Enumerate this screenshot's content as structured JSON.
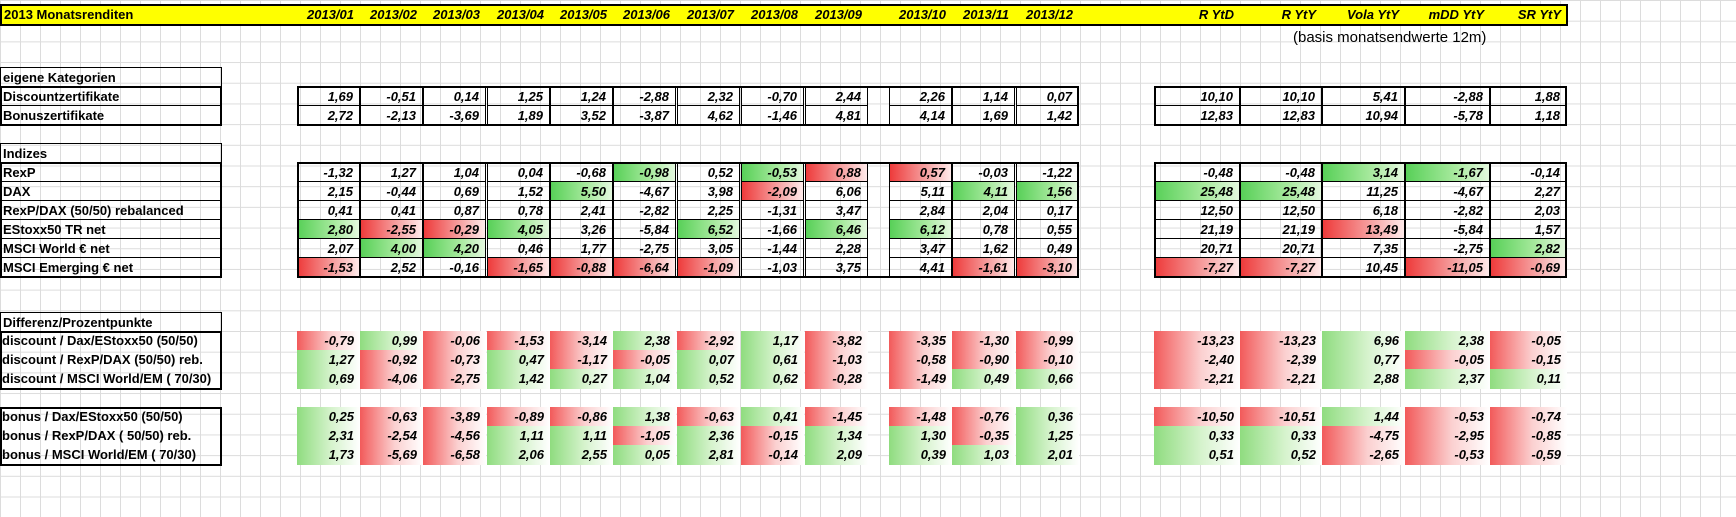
{
  "header": {
    "title": "2013 Monatsrenditen",
    "months": [
      "2013/01",
      "2013/02",
      "2013/03",
      "2013/04",
      "2013/05",
      "2013/06",
      "2013/07",
      "2013/08",
      "2013/09",
      "2013/10",
      "2013/11",
      "2013/12"
    ],
    "stats": [
      "R YtD",
      "R YtY",
      "Vola YtY",
      "mDD YtY",
      "SR YtY"
    ],
    "note": "(basis monatsendwerte 12m)"
  },
  "sections": [
    {
      "title": "eigene Kategorien",
      "rows": [
        {
          "label": "Discountzertifikate",
          "values": [
            "1,69",
            "-0,51",
            "0,14",
            "1,25",
            "1,24",
            "-2,88",
            "2,32",
            "-0,70",
            "2,44",
            "2,26",
            "1,14",
            "0,07"
          ],
          "stats": [
            "10,10",
            "10,10",
            "5,41",
            "-2,88",
            "1,88"
          ],
          "fill": [
            "",
            "",
            "",
            "",
            "",
            "",
            "",
            "",
            "",
            "",
            "",
            ""
          ],
          "sfill": [
            "",
            "",
            "",
            "",
            ""
          ]
        },
        {
          "label": "Bonuszertifikate",
          "values": [
            "2,72",
            "-2,13",
            "-3,69",
            "1,89",
            "3,52",
            "-3,87",
            "4,62",
            "-1,46",
            "4,81",
            "4,14",
            "1,69",
            "1,42"
          ],
          "stats": [
            "12,83",
            "12,83",
            "10,94",
            "-5,78",
            "1,18"
          ],
          "fill": [
            "",
            "",
            "",
            "",
            "",
            "",
            "",
            "",
            "",
            "",
            "",
            ""
          ],
          "sfill": [
            "",
            "",
            "",
            "",
            ""
          ]
        }
      ]
    },
    {
      "title": "Indizes",
      "rows": [
        {
          "label": "RexP",
          "values": [
            "-1,32",
            "1,27",
            "1,04",
            "0,04",
            "-0,68",
            "-0,98",
            "0,52",
            "-0,53",
            "0,88",
            "0,57",
            "-0,03",
            "-1,22"
          ],
          "stats": [
            "-0,48",
            "-0,48",
            "3,14",
            "-1,67",
            "-0,14"
          ],
          "fill": [
            "",
            "",
            "",
            "",
            "",
            "grn",
            "",
            "grn",
            "red",
            "red",
            "",
            ""
          ],
          "sfill": [
            "",
            "",
            "grn",
            "grn",
            ""
          ]
        },
        {
          "label": "DAX",
          "values": [
            "2,15",
            "-0,44",
            "0,69",
            "1,52",
            "5,50",
            "-4,67",
            "3,98",
            "-2,09",
            "6,06",
            "5,11",
            "4,11",
            "1,56"
          ],
          "stats": [
            "25,48",
            "25,48",
            "11,25",
            "-4,67",
            "2,27"
          ],
          "fill": [
            "",
            "",
            "",
            "",
            "grn",
            "",
            "",
            "red",
            "",
            "",
            "grn",
            "grn"
          ],
          "sfill": [
            "grn",
            "grn",
            "",
            "",
            ""
          ]
        },
        {
          "label": "RexP/DAX (50/50) rebalanced",
          "values": [
            "0,41",
            "0,41",
            "0,87",
            "0,78",
            "2,41",
            "-2,82",
            "2,25",
            "-1,31",
            "3,47",
            "2,84",
            "2,04",
            "0,17"
          ],
          "stats": [
            "12,50",
            "12,50",
            "6,18",
            "-2,82",
            "2,03"
          ],
          "fill": [
            "",
            "",
            "",
            "",
            "",
            "",
            "",
            "",
            "",
            "",
            "",
            ""
          ],
          "sfill": [
            "",
            "",
            "",
            "",
            ""
          ]
        },
        {
          "label": "EStoxx50 TR net",
          "values": [
            "2,80",
            "-2,55",
            "-0,29",
            "4,05",
            "3,26",
            "-5,84",
            "6,52",
            "-1,66",
            "6,46",
            "6,12",
            "0,78",
            "0,55"
          ],
          "stats": [
            "21,19",
            "21,19",
            "13,49",
            "-5,84",
            "1,57"
          ],
          "fill": [
            "grn",
            "red",
            "red",
            "grn",
            "",
            "",
            "grn",
            "",
            "grn",
            "grn",
            "",
            ""
          ],
          "sfill": [
            "",
            "",
            "red",
            "",
            ""
          ]
        },
        {
          "label": "MSCI World € net",
          "values": [
            "2,07",
            "4,00",
            "4,20",
            "0,46",
            "1,77",
            "-2,75",
            "3,05",
            "-1,44",
            "2,28",
            "3,47",
            "1,62",
            "0,49"
          ],
          "stats": [
            "20,71",
            "20,71",
            "7,35",
            "-2,75",
            "2,82"
          ],
          "fill": [
            "",
            "grn",
            "grn",
            "",
            "",
            "",
            "",
            "",
            "",
            "",
            "",
            ""
          ],
          "sfill": [
            "",
            "",
            "",
            "",
            "grn"
          ]
        },
        {
          "label": "MSCI Emerging € net",
          "values": [
            "-1,53",
            "2,52",
            "-0,16",
            "-1,65",
            "-0,88",
            "-6,64",
            "-1,09",
            "-1,03",
            "3,75",
            "4,41",
            "-1,61",
            "-3,10"
          ],
          "stats": [
            "-7,27",
            "-7,27",
            "10,45",
            "-11,05",
            "-0,69"
          ],
          "fill": [
            "red",
            "",
            "",
            "red",
            "red",
            "red",
            "red",
            "",
            "",
            "",
            "red",
            "red"
          ],
          "sfill": [
            "red",
            "red",
            "",
            "red",
            "red"
          ]
        }
      ]
    },
    {
      "title": "Differenz/Prozentpunkte",
      "rows": [
        {
          "label": "discount / Dax/EStoxx50 (50/50)",
          "values": [
            "-0,79",
            "0,99",
            "-0,06",
            "-1,53",
            "-3,14",
            "2,38",
            "-2,92",
            "1,17",
            "-3,82",
            "-3,35",
            "-1,30",
            "-0,99"
          ],
          "stats": [
            "-13,23",
            "-13,23",
            "6,96",
            "2,38",
            "-0,05"
          ]
        },
        {
          "label": "discount / RexP/DAX (50/50) reb.",
          "values": [
            "1,27",
            "-0,92",
            "-0,73",
            "0,47",
            "-1,17",
            "-0,05",
            "0,07",
            "0,61",
            "-1,03",
            "-0,58",
            "-0,90",
            "-0,10"
          ],
          "stats": [
            "-2,40",
            "-2,39",
            "0,77",
            "-0,05",
            "-0,15"
          ]
        },
        {
          "label": "discount / MSCI World/EM ( 70/30)",
          "values": [
            "0,69",
            "-4,06",
            "-2,75",
            "1,42",
            "0,27",
            "1,04",
            "0,52",
            "0,62",
            "-0,28",
            "-1,49",
            "0,49",
            "0,66"
          ],
          "stats": [
            "-2,21",
            "-2,21",
            "2,88",
            "2,37",
            "0,11"
          ]
        },
        {
          "label": "bonus / Dax/EStoxx50 (50/50)",
          "values": [
            "0,25",
            "-0,63",
            "-3,89",
            "-0,89",
            "-0,86",
            "1,38",
            "-0,63",
            "0,41",
            "-1,45",
            "-1,48",
            "-0,76",
            "0,36"
          ],
          "stats": [
            "-10,50",
            "-10,51",
            "1,44",
            "-0,53",
            "-0,74"
          ]
        },
        {
          "label": "bonus / RexP/DAX ( 50/50) reb.",
          "values": [
            "2,31",
            "-2,54",
            "-4,56",
            "1,11",
            "1,11",
            "-1,05",
            "2,36",
            "-0,15",
            "1,34",
            "1,30",
            "-0,35",
            "1,25"
          ],
          "stats": [
            "0,33",
            "0,33",
            "-4,75",
            "-2,95",
            "-0,85"
          ]
        },
        {
          "label": "bonus / MSCI World/EM ( 70/30)",
          "values": [
            "1,73",
            "-5,69",
            "-6,58",
            "2,06",
            "2,55",
            "0,05",
            "2,81",
            "-0,14",
            "2,09",
            "0,39",
            "1,03",
            "2,01"
          ],
          "stats": [
            "0,51",
            "0,52",
            "-2,65",
            "-0,53",
            "-0,59"
          ]
        }
      ]
    }
  ]
}
